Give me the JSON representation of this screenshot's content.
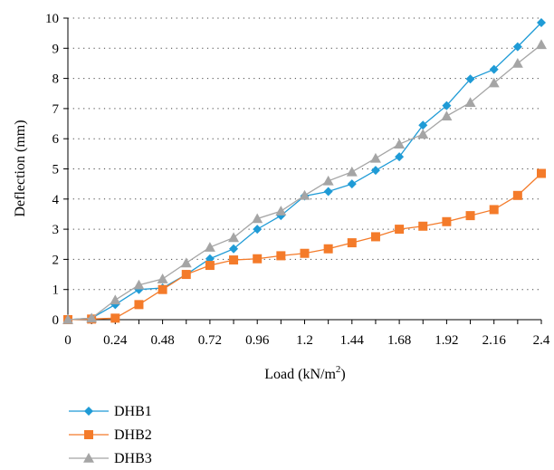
{
  "chart_data": {
    "type": "line",
    "xlabel": "Load (kN/m",
    "xlabel_sup": "2",
    "xlabel_end": ")",
    "ylabel": "Deflection (mm)",
    "xlim": [
      0,
      2.4
    ],
    "ylim": [
      0,
      10
    ],
    "x_ticks": [
      "0",
      "0.24",
      "0.48",
      "0.72",
      "0.96",
      "1.2",
      "1.44",
      "1.68",
      "1.92",
      "2.16",
      "2.4"
    ],
    "y_ticks": [
      "0",
      "1",
      "2",
      "3",
      "4",
      "5",
      "6",
      "7",
      "8",
      "9",
      "10"
    ],
    "grid": "horizontal dotted",
    "legend_position": "bottom-left",
    "series": [
      {
        "name": "DHB1",
        "color": "#1f9bd6",
        "marker": "diamond",
        "x": [
          0,
          0.12,
          0.24,
          0.36,
          0.48,
          0.6,
          0.72,
          0.84,
          0.96,
          1.08,
          1.2,
          1.32,
          1.44,
          1.56,
          1.68,
          1.8,
          1.92,
          2.04,
          2.16,
          2.28,
          2.4
        ],
        "y": [
          0,
          0.05,
          0.5,
          1.0,
          1.05,
          1.5,
          2.02,
          2.35,
          3.0,
          3.45,
          4.1,
          4.25,
          4.5,
          4.95,
          5.4,
          6.45,
          7.1,
          7.98,
          8.3,
          9.05,
          9.85
        ]
      },
      {
        "name": "DHB2",
        "color": "#f47b2a",
        "marker": "square",
        "x": [
          0,
          0.12,
          0.24,
          0.36,
          0.48,
          0.6,
          0.72,
          0.84,
          0.96,
          1.08,
          1.2,
          1.32,
          1.44,
          1.56,
          1.68,
          1.8,
          1.92,
          2.04,
          2.16,
          2.28,
          2.4
        ],
        "y": [
          0,
          0.02,
          0.05,
          0.5,
          1.0,
          1.5,
          1.8,
          1.98,
          2.02,
          2.12,
          2.2,
          2.35,
          2.55,
          2.75,
          3.0,
          3.1,
          3.25,
          3.45,
          3.65,
          4.12,
          4.85
        ]
      },
      {
        "name": "DHB3",
        "color": "#a5a5a5",
        "marker": "triangle",
        "x": [
          0,
          0.12,
          0.24,
          0.36,
          0.48,
          0.6,
          0.72,
          0.84,
          0.96,
          1.08,
          1.2,
          1.32,
          1.44,
          1.56,
          1.68,
          1.8,
          1.92,
          2.04,
          2.16,
          2.28,
          2.4
        ],
        "y": [
          0,
          0.05,
          0.65,
          1.15,
          1.35,
          1.88,
          2.4,
          2.72,
          3.35,
          3.6,
          4.12,
          4.6,
          4.9,
          5.35,
          5.82,
          6.15,
          6.75,
          7.2,
          7.85,
          8.5,
          9.12
        ]
      }
    ]
  }
}
